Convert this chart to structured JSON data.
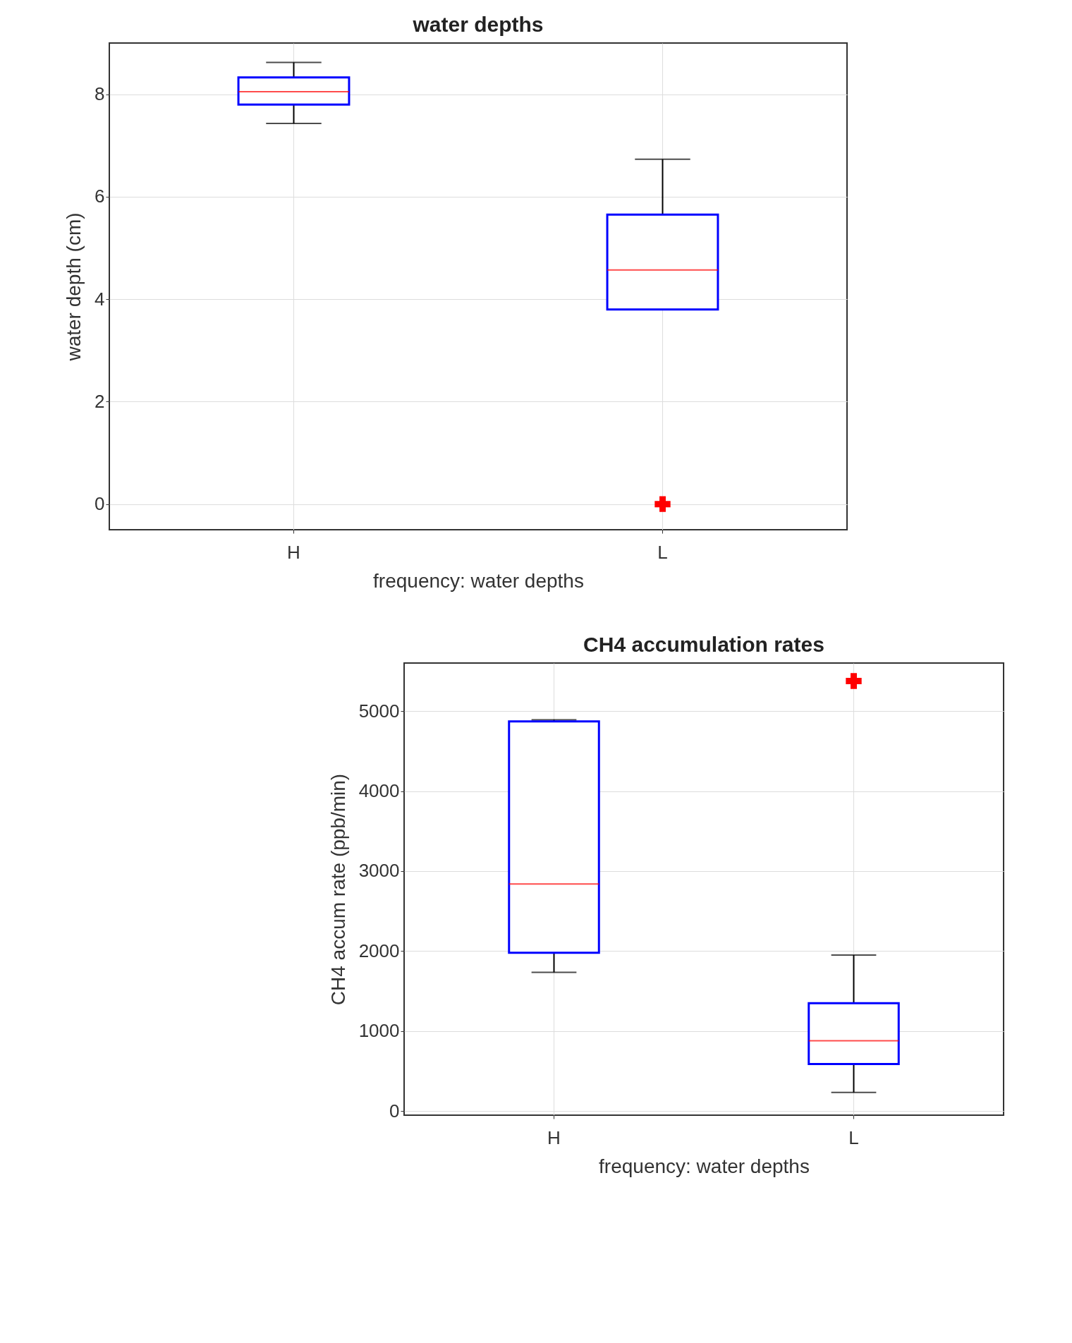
{
  "chart_data": [
    {
      "type": "box",
      "title": "water depths",
      "xlabel": "frequency: water depths",
      "ylabel": "water depth (cm)",
      "categories": [
        "H",
        "L"
      ],
      "ylim": [
        -0.5,
        9
      ],
      "yticks": [
        0,
        2,
        4,
        6,
        8
      ],
      "grid": true,
      "series": [
        {
          "color": "#0000ff",
          "boxes": [
            {
              "low": 7.43,
              "q1": 7.8,
              "median": 8.05,
              "q3": 8.33,
              "high": 8.62
            },
            {
              "low": 3.8,
              "q1": 3.8,
              "median": 4.57,
              "q3": 5.65,
              "high": 6.73,
              "outliers": [
                0
              ]
            }
          ]
        }
      ]
    },
    {
      "type": "box",
      "title": "CH4 accumulation rates",
      "xlabel": "frequency: water depths",
      "ylabel": "CH4 accum rate (ppb/min)",
      "categories": [
        "H",
        "L"
      ],
      "ylim": [
        -50,
        5600
      ],
      "yticks": [
        0,
        1000,
        2000,
        3000,
        4000,
        5000
      ],
      "grid": true,
      "series": [
        {
          "color": "#0000ff",
          "boxes": [
            {
              "low": 1735,
              "q1": 1980,
              "median": 2840,
              "q3": 4870,
              "high": 4890
            },
            {
              "low": 235,
              "q1": 590,
              "median": 880,
              "q3": 1350,
              "high": 1950,
              "outliers": [
                5375
              ]
            }
          ]
        }
      ]
    }
  ]
}
